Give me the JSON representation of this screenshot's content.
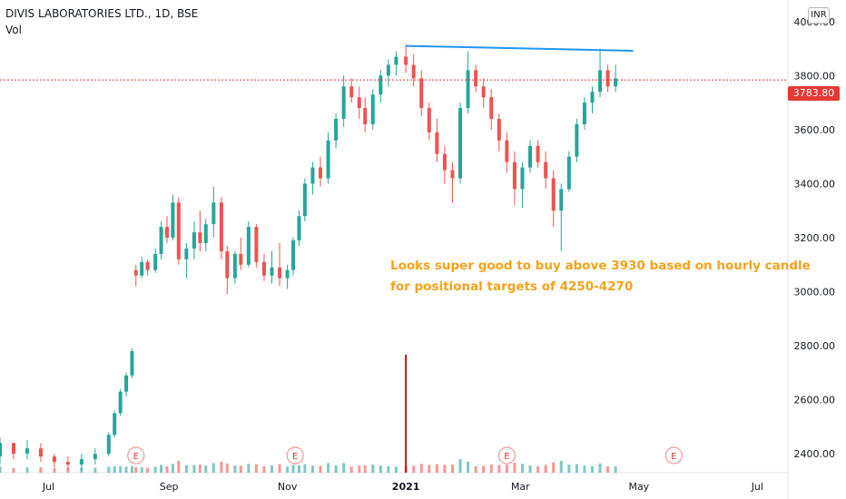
{
  "header": {
    "title": "DIVIS LABORATORIES LTD., 1D, BSE",
    "volume_label": "Vol",
    "currency": "INR"
  },
  "last_price": {
    "value": 3783.8,
    "label": "3783.80",
    "color": "#e53935"
  },
  "annotations": {
    "line1": "Looks super good to buy above 3930 based on hourly candle",
    "line2": " for positional targets of 4250-4270",
    "color": "#f7a21b"
  },
  "earnings_markers": [
    "E",
    "E",
    "E",
    "E"
  ],
  "colors": {
    "up": "#26a69a",
    "down": "#ef5350",
    "trendline": "#2196f3",
    "volume_spike": "#b71c1c"
  },
  "chart_data": {
    "type": "candlestick",
    "title": "DIVIS LABORATORIES LTD., 1D, BSE",
    "ylabel": "INR",
    "ylim": [
      2330,
      4080
    ],
    "y_ticks": [
      2400,
      2600,
      2800,
      3000,
      3200,
      3400,
      3600,
      3800,
      4000
    ],
    "y_tick_labels": [
      "2400.00",
      "2600.00",
      "2800.00",
      "3000.00",
      "3200.00",
      "3400.00",
      "3600.00",
      "3800.00",
      "4000.00"
    ],
    "x_tick_labels": [
      "Jul",
      "Sep",
      "Nov",
      "2021",
      "Mar",
      "May",
      "Jul"
    ],
    "x_tick_dates": [
      "2020-07-01",
      "2020-09-01",
      "2020-11-01",
      "2021-01-01",
      "2021-03-01",
      "2021-05-01",
      "2021-07-01"
    ],
    "xlim": [
      "2020-06-06",
      "2021-07-13"
    ],
    "volume_spike_date": "2021-01-01",
    "earnings_dates": [
      "2020-08-15",
      "2020-11-05",
      "2021-02-22",
      "2021-05-19"
    ],
    "trendline": {
      "start": [
        "2021-01-01",
        3910
      ],
      "end": [
        "2021-04-28",
        3892
      ]
    },
    "last_price": 3783.8,
    "candles": [
      [
        "2020-06-06",
        2390,
        2460,
        2360,
        2440
      ],
      [
        "2020-06-13",
        2440,
        2430,
        2380,
        2400
      ],
      [
        "2020-06-20",
        2400,
        2450,
        2380,
        2420
      ],
      [
        "2020-06-27",
        2420,
        2440,
        2370,
        2390
      ],
      [
        "2020-07-04",
        2390,
        2400,
        2350,
        2370
      ],
      [
        "2020-07-11",
        2370,
        2390,
        2340,
        2360
      ],
      [
        "2020-07-18",
        2360,
        2400,
        2340,
        2380
      ],
      [
        "2020-07-25",
        2380,
        2420,
        2360,
        2400
      ],
      [
        "2020-08-01",
        2400,
        2480,
        2390,
        2470
      ],
      [
        "2020-08-04",
        2470,
        2560,
        2460,
        2550
      ],
      [
        "2020-08-07",
        2550,
        2640,
        2540,
        2630
      ],
      [
        "2020-08-10",
        2630,
        2700,
        2610,
        2690
      ],
      [
        "2020-08-13",
        2690,
        2790,
        2680,
        2780
      ],
      [
        "2020-08-15",
        3080,
        3100,
        3020,
        3060
      ],
      [
        "2020-08-18",
        3060,
        3130,
        3050,
        3110
      ],
      [
        "2020-08-21",
        3110,
        3120,
        3060,
        3080
      ],
      [
        "2020-08-25",
        3080,
        3160,
        3070,
        3140
      ],
      [
        "2020-08-28",
        3140,
        3260,
        3120,
        3240
      ],
      [
        "2020-08-31",
        3240,
        3280,
        3180,
        3200
      ],
      [
        "2020-09-03",
        3200,
        3360,
        3190,
        3330
      ],
      [
        "2020-09-06",
        3330,
        3350,
        3100,
        3120
      ],
      [
        "2020-09-10",
        3120,
        3180,
        3050,
        3160
      ],
      [
        "2020-09-14",
        3160,
        3260,
        3120,
        3220
      ],
      [
        "2020-09-17",
        3220,
        3300,
        3150,
        3180
      ],
      [
        "2020-09-20",
        3180,
        3270,
        3150,
        3250
      ],
      [
        "2020-09-24",
        3250,
        3390,
        3200,
        3330
      ],
      [
        "2020-09-28",
        3330,
        3350,
        3120,
        3150
      ],
      [
        "2020-10-01",
        3150,
        3170,
        2990,
        3050
      ],
      [
        "2020-10-05",
        3050,
        3150,
        3030,
        3140
      ],
      [
        "2020-10-08",
        3140,
        3200,
        3080,
        3100
      ],
      [
        "2020-10-12",
        3100,
        3260,
        3090,
        3240
      ],
      [
        "2020-10-16",
        3240,
        3250,
        3090,
        3110
      ],
      [
        "2020-10-20",
        3110,
        3140,
        3040,
        3060
      ],
      [
        "2020-10-24",
        3060,
        3150,
        3030,
        3090
      ],
      [
        "2020-10-28",
        3090,
        3180,
        3020,
        3050
      ],
      [
        "2020-11-01",
        3050,
        3100,
        3010,
        3080
      ],
      [
        "2020-11-04",
        3080,
        3200,
        3060,
        3190
      ],
      [
        "2020-11-07",
        3190,
        3300,
        3170,
        3280
      ],
      [
        "2020-11-10",
        3280,
        3420,
        3260,
        3400
      ],
      [
        "2020-11-14",
        3400,
        3480,
        3360,
        3460
      ],
      [
        "2020-11-18",
        3460,
        3500,
        3390,
        3420
      ],
      [
        "2020-11-22",
        3420,
        3590,
        3400,
        3560
      ],
      [
        "2020-11-26",
        3560,
        3660,
        3530,
        3640
      ],
      [
        "2020-11-30",
        3640,
        3800,
        3610,
        3760
      ],
      [
        "2020-12-04",
        3760,
        3790,
        3700,
        3720
      ],
      [
        "2020-12-08",
        3720,
        3760,
        3640,
        3680
      ],
      [
        "2020-12-11",
        3680,
        3720,
        3590,
        3620
      ],
      [
        "2020-12-15",
        3620,
        3750,
        3600,
        3730
      ],
      [
        "2020-12-19",
        3730,
        3820,
        3700,
        3800
      ],
      [
        "2020-12-23",
        3800,
        3860,
        3760,
        3840
      ],
      [
        "2020-12-27",
        3840,
        3890,
        3800,
        3870
      ],
      [
        "2021-01-01",
        3870,
        3915,
        3810,
        3840
      ],
      [
        "2021-01-05",
        3840,
        3880,
        3760,
        3790
      ],
      [
        "2021-01-09",
        3790,
        3820,
        3650,
        3680
      ],
      [
        "2021-01-13",
        3680,
        3700,
        3560,
        3590
      ],
      [
        "2021-01-17",
        3590,
        3640,
        3480,
        3510
      ],
      [
        "2021-01-21",
        3510,
        3540,
        3400,
        3450
      ],
      [
        "2021-01-25",
        3450,
        3480,
        3330,
        3420
      ],
      [
        "2021-01-29",
        3420,
        3700,
        3400,
        3680
      ],
      [
        "2021-02-02",
        3680,
        3890,
        3660,
        3820
      ],
      [
        "2021-02-06",
        3820,
        3840,
        3740,
        3760
      ],
      [
        "2021-02-10",
        3760,
        3790,
        3680,
        3720
      ],
      [
        "2021-02-14",
        3720,
        3750,
        3600,
        3640
      ],
      [
        "2021-02-18",
        3640,
        3660,
        3520,
        3560
      ],
      [
        "2021-02-22",
        3560,
        3590,
        3440,
        3480
      ],
      [
        "2021-02-26",
        3480,
        3520,
        3320,
        3380
      ],
      [
        "2021-03-02",
        3380,
        3480,
        3310,
        3460
      ],
      [
        "2021-03-06",
        3460,
        3560,
        3440,
        3540
      ],
      [
        "2021-03-10",
        3540,
        3560,
        3460,
        3480
      ],
      [
        "2021-03-14",
        3480,
        3520,
        3380,
        3420
      ],
      [
        "2021-03-18",
        3420,
        3450,
        3240,
        3300
      ],
      [
        "2021-03-22",
        3300,
        3400,
        3150,
        3380
      ],
      [
        "2021-03-26",
        3380,
        3520,
        3370,
        3500
      ],
      [
        "2021-03-30",
        3500,
        3640,
        3480,
        3620
      ],
      [
        "2021-04-03",
        3620,
        3720,
        3600,
        3700
      ],
      [
        "2021-04-07",
        3700,
        3760,
        3660,
        3740
      ],
      [
        "2021-04-11",
        3740,
        3900,
        3720,
        3820
      ],
      [
        "2021-04-15",
        3820,
        3840,
        3740,
        3760
      ],
      [
        "2021-04-19",
        3760,
        3840,
        3740,
        3790
      ]
    ]
  }
}
